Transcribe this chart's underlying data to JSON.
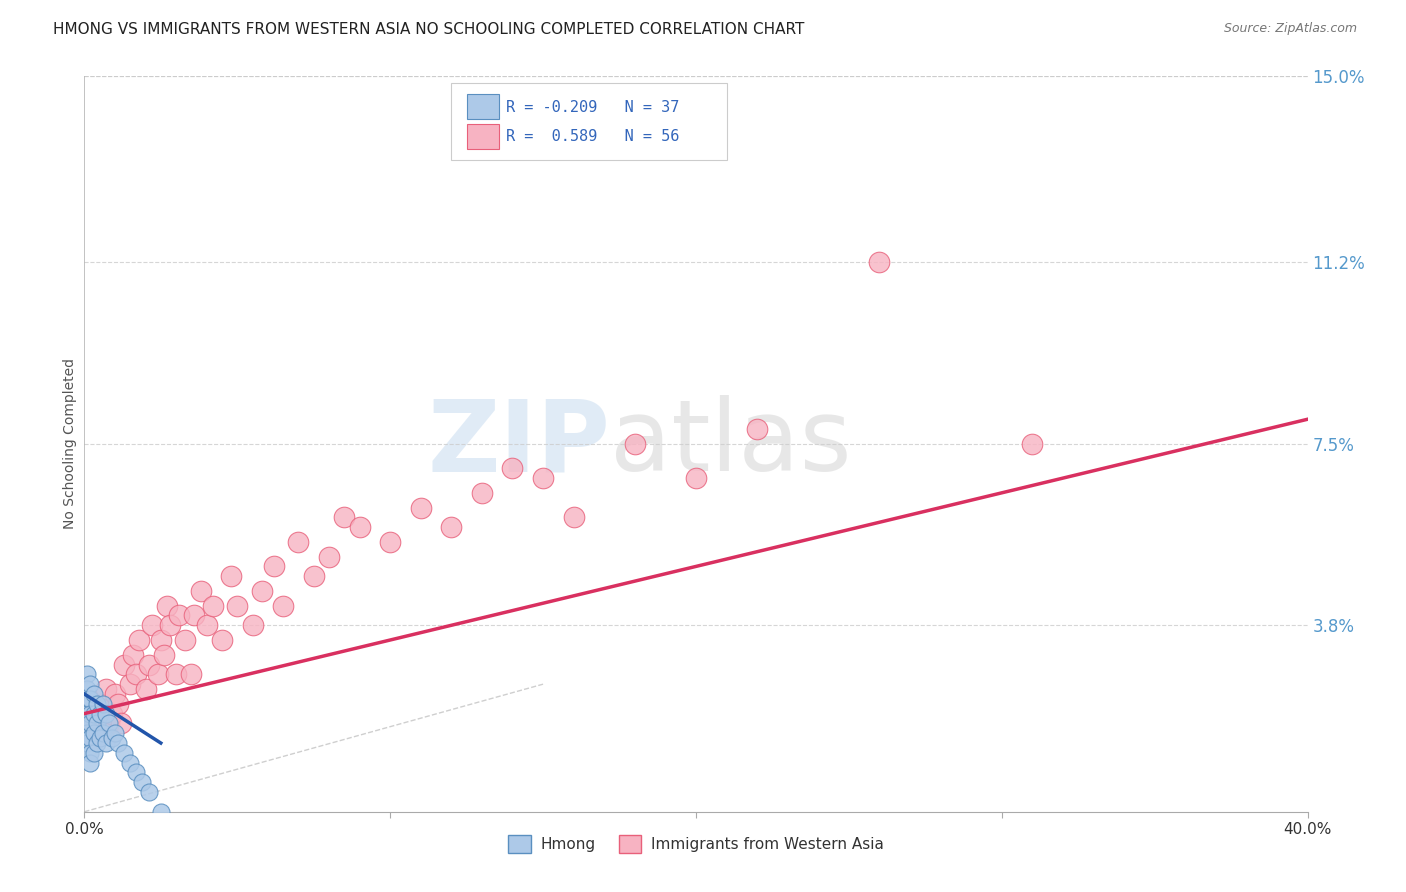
{
  "title": "HMONG VS IMMIGRANTS FROM WESTERN ASIA NO SCHOOLING COMPLETED CORRELATION CHART",
  "source": "Source: ZipAtlas.com",
  "ylabel": "No Schooling Completed",
  "xlim": [
    0.0,
    0.4
  ],
  "ylim": [
    0.0,
    0.15
  ],
  "ytick_right_labels": [
    "3.8%",
    "7.5%",
    "11.2%",
    "15.0%"
  ],
  "ytick_right_values": [
    0.038,
    0.075,
    0.112,
    0.15
  ],
  "r_hmong": -0.209,
  "n_hmong": 37,
  "r_western_asia": 0.589,
  "n_western_asia": 56,
  "hmong_color": "#adc9e8",
  "hmong_edge_color": "#5a8fc0",
  "western_asia_color": "#f7b3c2",
  "western_asia_edge_color": "#e8607a",
  "trend_hmong_color": "#2255aa",
  "trend_western_asia_color": "#d93060",
  "background_color": "#ffffff",
  "grid_color": "#cccccc",
  "hmong_x": [
    0.001,
    0.001,
    0.001,
    0.001,
    0.001,
    0.001,
    0.001,
    0.002,
    0.002,
    0.002,
    0.002,
    0.002,
    0.002,
    0.002,
    0.003,
    0.003,
    0.003,
    0.003,
    0.004,
    0.004,
    0.004,
    0.005,
    0.005,
    0.006,
    0.006,
    0.007,
    0.007,
    0.008,
    0.009,
    0.01,
    0.011,
    0.013,
    0.015,
    0.017,
    0.019,
    0.021,
    0.025
  ],
  "hmong_y": [
    0.028,
    0.025,
    0.022,
    0.02,
    0.018,
    0.016,
    0.014,
    0.026,
    0.023,
    0.02,
    0.018,
    0.015,
    0.012,
    0.01,
    0.024,
    0.02,
    0.016,
    0.012,
    0.022,
    0.018,
    0.014,
    0.02,
    0.015,
    0.022,
    0.016,
    0.02,
    0.014,
    0.018,
    0.015,
    0.016,
    0.014,
    0.012,
    0.01,
    0.008,
    0.006,
    0.004,
    0.0
  ],
  "western_asia_x": [
    0.002,
    0.003,
    0.004,
    0.005,
    0.006,
    0.007,
    0.008,
    0.009,
    0.01,
    0.011,
    0.012,
    0.013,
    0.015,
    0.016,
    0.017,
    0.018,
    0.02,
    0.021,
    0.022,
    0.024,
    0.025,
    0.026,
    0.027,
    0.028,
    0.03,
    0.031,
    0.033,
    0.035,
    0.036,
    0.038,
    0.04,
    0.042,
    0.045,
    0.048,
    0.05,
    0.055,
    0.058,
    0.062,
    0.065,
    0.07,
    0.075,
    0.08,
    0.085,
    0.09,
    0.1,
    0.11,
    0.12,
    0.13,
    0.14,
    0.15,
    0.16,
    0.18,
    0.2,
    0.22,
    0.26,
    0.31
  ],
  "western_asia_y": [
    0.018,
    0.015,
    0.02,
    0.022,
    0.016,
    0.025,
    0.018,
    0.02,
    0.024,
    0.022,
    0.018,
    0.03,
    0.026,
    0.032,
    0.028,
    0.035,
    0.025,
    0.03,
    0.038,
    0.028,
    0.035,
    0.032,
    0.042,
    0.038,
    0.028,
    0.04,
    0.035,
    0.028,
    0.04,
    0.045,
    0.038,
    0.042,
    0.035,
    0.048,
    0.042,
    0.038,
    0.045,
    0.05,
    0.042,
    0.055,
    0.048,
    0.052,
    0.06,
    0.058,
    0.055,
    0.062,
    0.058,
    0.065,
    0.07,
    0.068,
    0.06,
    0.075,
    0.068,
    0.078,
    0.112,
    0.075
  ],
  "trend_wa_x0": 0.0,
  "trend_wa_y0": 0.02,
  "trend_wa_x1": 0.4,
  "trend_wa_y1": 0.08,
  "trend_h_x0": 0.0,
  "trend_h_y0": 0.024,
  "trend_h_x1": 0.025,
  "trend_h_y1": 0.014
}
